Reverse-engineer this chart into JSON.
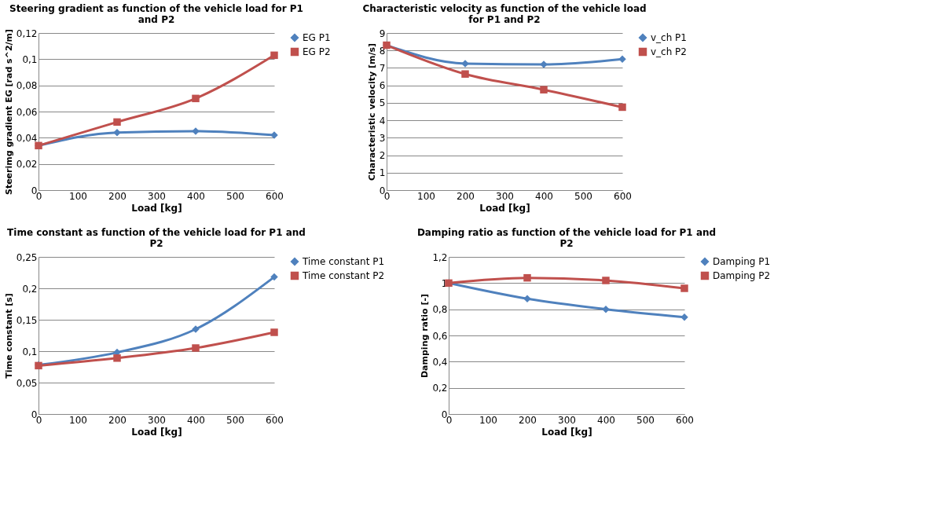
{
  "chart_data": [
    {
      "type": "line",
      "title": "Steering gradient as function of the vehicle load for P1 and P2",
      "xlabel": "Load [kg]",
      "ylabel": "Steerimg gradient EG [rad s^2/m]",
      "x": [
        0,
        200,
        400,
        600
      ],
      "xlim": [
        0,
        600
      ],
      "xticks": [
        0,
        100,
        200,
        300,
        400,
        500,
        600
      ],
      "ylim": [
        0,
        0.12
      ],
      "yticks": [
        0,
        {
          "value": 0.02,
          "label": "0,02"
        },
        {
          "value": 0.04,
          "label": "0,04"
        },
        {
          "value": 0.06,
          "label": "0,06"
        },
        {
          "value": 0.08,
          "label": "0,08"
        },
        {
          "value": 0.1,
          "label": "0,1"
        },
        {
          "value": 0.12,
          "label": "0,12"
        }
      ],
      "grid": "y",
      "legend": "right",
      "line_style": "solid",
      "series": [
        {
          "name": "EG P1",
          "color": "#4f81bd",
          "marker": "diamond",
          "values": [
            0.034,
            0.044,
            0.045,
            0.042
          ]
        },
        {
          "name": "EG P2",
          "color": "#c0504d",
          "marker": "square",
          "values": [
            0.034,
            0.052,
            0.07,
            0.103
          ]
        }
      ]
    },
    {
      "type": "line",
      "title": "Characteristic velocity as function of the vehicle load for P1 and P2",
      "xlabel": "Load [kg]",
      "ylabel": "Characteristic velocity [m/s]",
      "x": [
        0,
        200,
        400,
        600
      ],
      "xlim": [
        0,
        600
      ],
      "xticks": [
        0,
        100,
        200,
        300,
        400,
        500,
        600
      ],
      "ylim": [
        0,
        9
      ],
      "yticks": [
        0,
        1,
        2,
        3,
        4,
        5,
        6,
        7,
        8,
        9
      ],
      "grid": "y",
      "legend": "right",
      "line_style": "solid",
      "series": [
        {
          "name": "v_ch P1",
          "color": "#4f81bd",
          "marker": "diamond",
          "values": [
            8.3,
            7.25,
            7.2,
            7.5
          ]
        },
        {
          "name": "v_ch P2",
          "color": "#c0504d",
          "marker": "square",
          "values": [
            8.3,
            6.65,
            5.75,
            4.75
          ]
        }
      ]
    },
    {
      "type": "line",
      "title": "Time constant as function of the vehicle load for P1 and P2",
      "xlabel": "Load [kg]",
      "ylabel": "Time constant [s]",
      "x": [
        0,
        200,
        400,
        600
      ],
      "xlim": [
        0,
        600
      ],
      "xticks": [
        0,
        100,
        200,
        300,
        400,
        500,
        600
      ],
      "ylim": [
        0,
        0.25
      ],
      "yticks": [
        0,
        {
          "value": 0.05,
          "label": "0,05"
        },
        {
          "value": 0.1,
          "label": "0,1"
        },
        {
          "value": 0.15,
          "label": "0,15"
        },
        {
          "value": 0.2,
          "label": "0,2"
        },
        {
          "value": 0.25,
          "label": "0,25"
        }
      ],
      "grid": "y",
      "legend": "right",
      "line_style": "solid",
      "series": [
        {
          "name": "Time constant P1",
          "color": "#4f81bd",
          "marker": "diamond",
          "values": [
            0.078,
            0.098,
            0.135,
            0.218
          ]
        },
        {
          "name": "Time constant P2",
          "color": "#c0504d",
          "marker": "square",
          "values": [
            0.077,
            0.089,
            0.105,
            0.13
          ]
        }
      ]
    },
    {
      "type": "line",
      "title": "Damping ratio as function of the vehicle load for P1 and P2",
      "xlabel": "Load [kg]",
      "ylabel": "Damping ratio [-]",
      "x": [
        0,
        200,
        400,
        600
      ],
      "xlim": [
        0,
        600
      ],
      "xticks": [
        0,
        100,
        200,
        300,
        400,
        500,
        600
      ],
      "ylim": [
        0,
        1.2
      ],
      "yticks": [
        0,
        {
          "value": 0.2,
          "label": "0,2"
        },
        {
          "value": 0.4,
          "label": "0,4"
        },
        {
          "value": 0.6,
          "label": "0,6"
        },
        {
          "value": 0.8,
          "label": "0,8"
        },
        1,
        {
          "value": 1.2,
          "label": "1,2"
        }
      ],
      "grid": "y",
      "legend": "right",
      "line_style": "solid",
      "series": [
        {
          "name": "Damping P1",
          "color": "#4f81bd",
          "marker": "diamond",
          "values": [
            1.0,
            0.88,
            0.8,
            0.74
          ]
        },
        {
          "name": "Damping P2",
          "color": "#c0504d",
          "marker": "square",
          "values": [
            1.0,
            1.04,
            1.02,
            0.96
          ]
        }
      ]
    }
  ]
}
